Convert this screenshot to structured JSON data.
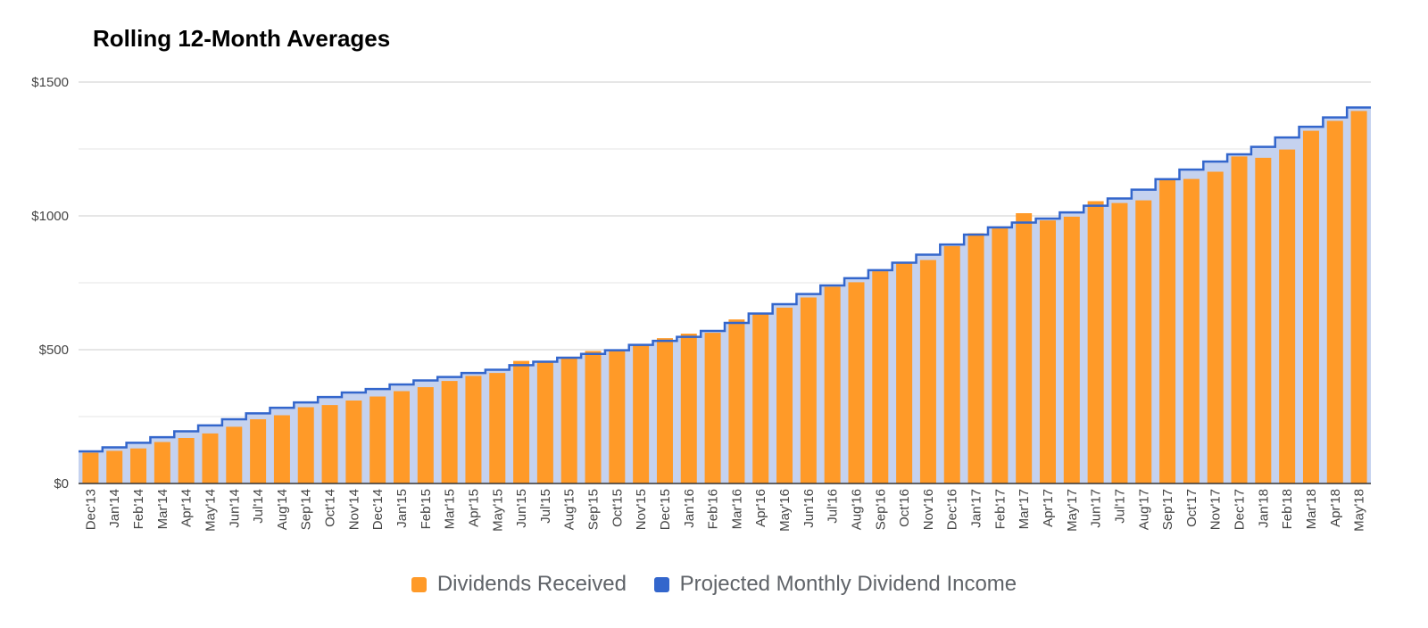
{
  "chart_data": {
    "type": "bar",
    "title": "Rolling 12-Month Averages",
    "xlabel": "",
    "ylabel": "",
    "ylim": [
      0,
      1500
    ],
    "y_ticks": [
      0,
      500,
      1000,
      1500
    ],
    "y_tick_labels": [
      "$0",
      "$500",
      "$1000",
      "$1500"
    ],
    "grid": true,
    "legend_position": "bottom",
    "categories": [
      "Dec'13",
      "Jan'14",
      "Feb'14",
      "Mar'14",
      "Apr'14",
      "May'14",
      "Jun'14",
      "Jul'14",
      "Aug'14",
      "Sep'14",
      "Oct'14",
      "Nov'14",
      "Dec'14",
      "Jan'15",
      "Feb'15",
      "Mar'15",
      "Apr'15",
      "May'15",
      "Jun'15",
      "Jul'15",
      "Aug'15",
      "Sep'15",
      "Oct'15",
      "Nov'15",
      "Dec'15",
      "Jan'16",
      "Feb'16",
      "Mar'16",
      "Apr'16",
      "May'16",
      "Jun'16",
      "Jul'16",
      "Aug'16",
      "Sep'16",
      "Oct'16",
      "Nov'16",
      "Dec'16",
      "Jan'17",
      "Feb'17",
      "Mar'17",
      "Apr'17",
      "May'17",
      "Jun'17",
      "Jul'17",
      "Aug'17",
      "Sep'17",
      "Oct'17",
      "Nov'17",
      "Dec'17",
      "Jan'18",
      "Feb'18",
      "Mar'18",
      "Apr'18",
      "May'18"
    ],
    "series": [
      {
        "name": "Dividends Received",
        "kind": "bar",
        "color": "#ff9a28",
        "values": [
          115,
          122,
          131,
          155,
          170,
          187,
          212,
          240,
          255,
          285,
          293,
          310,
          325,
          345,
          360,
          383,
          402,
          413,
          458,
          455,
          467,
          495,
          495,
          515,
          543,
          560,
          563,
          613,
          633,
          657,
          695,
          735,
          752,
          793,
          822,
          835,
          887,
          935,
          953,
          1010,
          983,
          997,
          1055,
          1048,
          1058,
          1140,
          1138,
          1165,
          1222,
          1217,
          1248,
          1318,
          1355,
          1392
        ],
        "label": "Dividends Received"
      },
      {
        "name": "Projected Monthly Dividend Income",
        "kind": "step-area",
        "color": "#3366cc",
        "fill": "#c5d2ef",
        "values": [
          120,
          135,
          152,
          173,
          195,
          217,
          240,
          262,
          283,
          303,
          323,
          340,
          353,
          370,
          385,
          398,
          413,
          425,
          442,
          455,
          470,
          484,
          498,
          518,
          533,
          548,
          570,
          600,
          635,
          670,
          708,
          740,
          767,
          797,
          825,
          855,
          893,
          930,
          957,
          975,
          990,
          1013,
          1038,
          1065,
          1098,
          1137,
          1173,
          1203,
          1230,
          1258,
          1293,
          1333,
          1368,
          1405
        ],
        "label": "Projected Monthly Dividend Income"
      }
    ]
  },
  "legend": {
    "items": [
      {
        "label": "Dividends Received",
        "color": "#ff9a28"
      },
      {
        "label": "Projected Monthly Dividend Income",
        "color": "#3366cc"
      }
    ]
  }
}
